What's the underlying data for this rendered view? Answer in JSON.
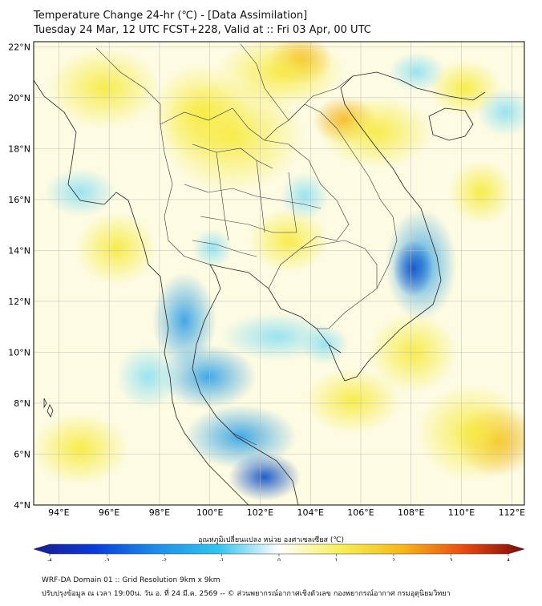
{
  "title": "Temperature Change 24-hr (℃) - [Data Assimilation]",
  "subtitle": "Tuesday 24 Mar, 12 UTC FCST+228, Valid at :: Fri 03 Apr, 00 UTC",
  "map": {
    "lon_range": [
      93,
      112.5
    ],
    "lat_range": [
      4,
      22.2
    ],
    "lat_ticks": [
      "22°N",
      "20°N",
      "18°N",
      "16°N",
      "14°N",
      "12°N",
      "10°N",
      "8°N",
      "6°N",
      "4°N"
    ],
    "lon_ticks": [
      "94°E",
      "96°E",
      "98°E",
      "100°E",
      "102°E",
      "104°E",
      "106°E",
      "108°E",
      "110°E",
      "112°E"
    ],
    "grid": true,
    "background_color": "#fdfbe2"
  },
  "colorbar": {
    "title": "อุณหภูมิเปลี่ยนแปลง หน่วย องศาเซลเซียส (℃)",
    "ticks": [
      "-4",
      "-3",
      "-2",
      "-1",
      "0",
      "1",
      "2",
      "3",
      "4"
    ],
    "min": -4,
    "max": 4,
    "colors": [
      "#1a1b8c",
      "#0a3cd8",
      "#1e8ee8",
      "#32c3ee",
      "#ffffff",
      "#f7ef5a",
      "#f5b81e",
      "#e84c12",
      "#7a0a08"
    ]
  },
  "footer": {
    "line1": "WRF-DA Domain 01 :: Grid Resolution 9km x 9km",
    "line2": "ปรับปรุงข้อมูล ณ เวลา 19:00น. วัน อ. ที่ 24 มี.ค. 2569 -- © ส่วนพยากรณ์อากาศเชิงตัวเลข กองพยากรณ์อากาศ กรมอุตุนิยมวิทยา"
  }
}
